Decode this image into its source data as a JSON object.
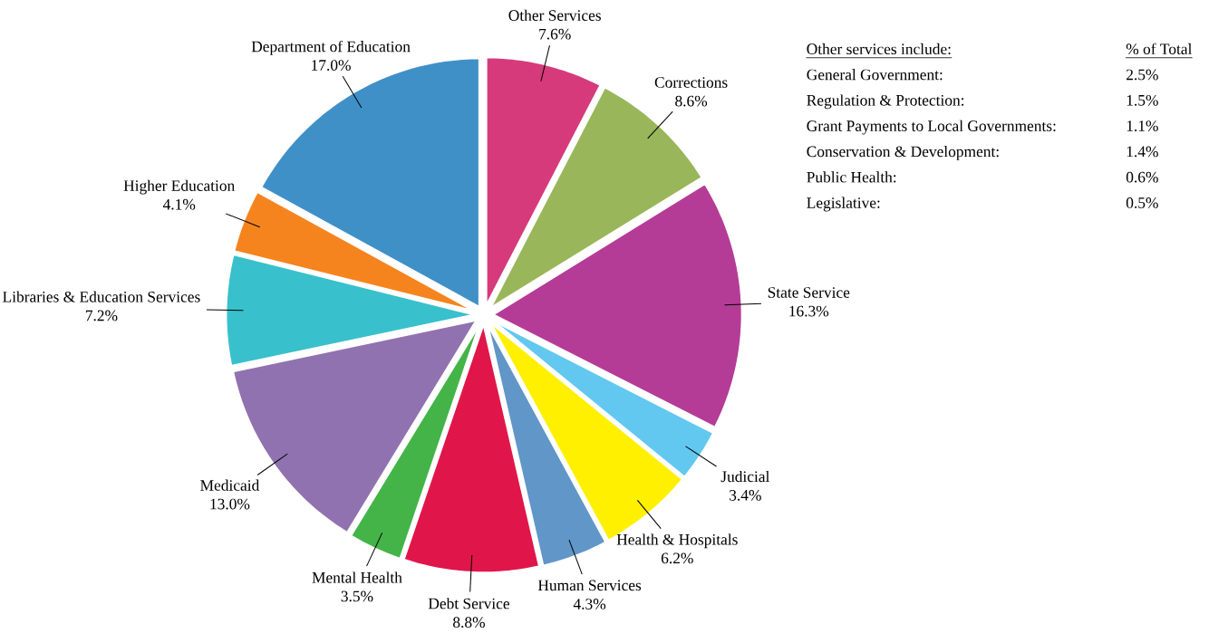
{
  "chart_data": {
    "type": "pie",
    "categories": [
      "Other Services",
      "Corrections",
      "State Service",
      "Judicial",
      "Health & Hospitals",
      "Human Services",
      "Debt Service",
      "Mental Health",
      "Medicaid",
      "Libraries & Education Services",
      "Higher Education",
      "Department of Education"
    ],
    "values": [
      7.6,
      8.6,
      16.3,
      3.4,
      6.2,
      4.3,
      8.8,
      3.5,
      13.0,
      7.2,
      4.1,
      17.0
    ],
    "value_labels": [
      "7.6%",
      "8.6%",
      "16.3%",
      "3.4%",
      "6.2%",
      "4.3%",
      "8.8%",
      "3.5%",
      "13.0%",
      "7.2%",
      "4.1%",
      "17.0%"
    ],
    "colors": [
      "#d63a7a",
      "#9ab65a",
      "#b43c96",
      "#62c8f0",
      "#fff000",
      "#6096c8",
      "#e0164a",
      "#44b449",
      "#9172b0",
      "#38c0cc",
      "#f5841f",
      "#4090c8"
    ],
    "annotations": [
      "Other services include:",
      "% of Total",
      "General Government:",
      "2.5%",
      "Regulation & Protection:",
      "1.5%",
      "Grant Payments to Local Governments:",
      "1.1%",
      "Conservation & Development:",
      "1.4%",
      "Public Health:",
      "0.6%",
      "Legislative:",
      "0.5%"
    ]
  }
}
